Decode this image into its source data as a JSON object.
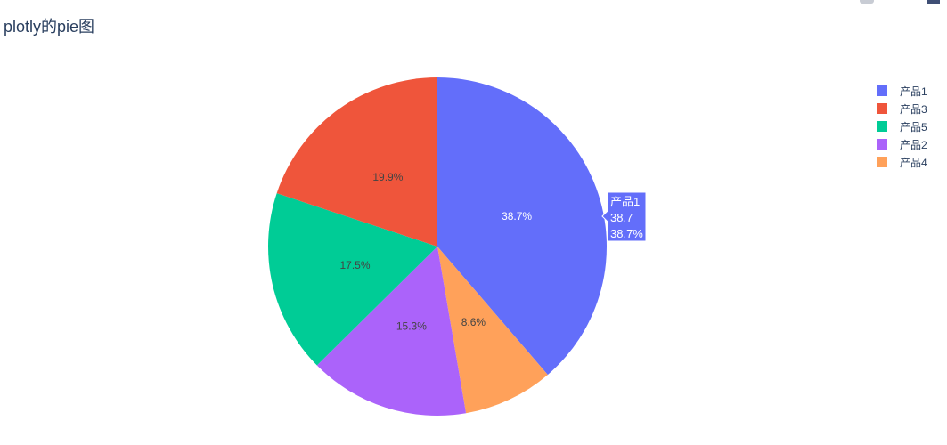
{
  "title": "plotly的pie图",
  "chart_data": {
    "type": "pie",
    "title": "plotly的pie图",
    "labels": [
      "产品1",
      "产品3",
      "产品5",
      "产品2",
      "产品4"
    ],
    "values": [
      38.7,
      19.9,
      17.5,
      15.3,
      8.6
    ],
    "percent_labels": [
      "38.7%",
      "19.9%",
      "17.5%",
      "15.3%",
      "8.6%"
    ],
    "colors": [
      "#636efa",
      "#EF553B",
      "#00cc96",
      "#ab63fa",
      "#FFA15A"
    ],
    "slice_order": [
      "产品1",
      "产品4",
      "产品2",
      "产品5",
      "产品3"
    ],
    "direction": "clockwise",
    "legend_placement": "top-right",
    "hover": {
      "label": "产品1",
      "value": "38.7",
      "percent": "38.7%"
    }
  },
  "modebar": {
    "buttons": [
      "camera-icon",
      "plotly-logo-icon"
    ]
  }
}
